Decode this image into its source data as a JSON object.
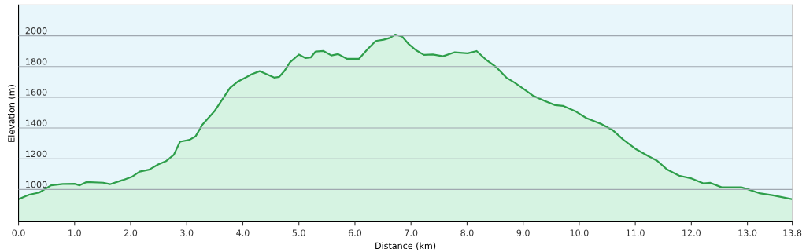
{
  "chart_data": {
    "type": "area",
    "xlabel": "Distance (km)",
    "ylabel": "Elevation (m)",
    "xlim": [
      0,
      13.8
    ],
    "ylim": [
      790,
      2200
    ],
    "xticks": [
      {
        "value": 0,
        "label": "0.0"
      },
      {
        "value": 1,
        "label": "1.0"
      },
      {
        "value": 2,
        "label": "2.0"
      },
      {
        "value": 3,
        "label": "3.0"
      },
      {
        "value": 4,
        "label": "4.0"
      },
      {
        "value": 5,
        "label": "5.0"
      },
      {
        "value": 6,
        "label": "6.0"
      },
      {
        "value": 7,
        "label": "7.0"
      },
      {
        "value": 8,
        "label": "8.0"
      },
      {
        "value": 9,
        "label": "9.0"
      },
      {
        "value": 10,
        "label": "10.0"
      },
      {
        "value": 11,
        "label": "11.0"
      },
      {
        "value": 12,
        "label": "12.0"
      },
      {
        "value": 13,
        "label": "13.0"
      },
      {
        "value": 13.8,
        "label": "13.8"
      }
    ],
    "yticks": [
      1000,
      1200,
      1400,
      1600,
      1800,
      2000
    ],
    "grid": "y",
    "series": [
      {
        "color": "#2e9e4a",
        "x": [
          0,
          0.19,
          0.37,
          0.58,
          0.79,
          1.0,
          1.09,
          1.21,
          1.51,
          1.63,
          1.86,
          2.02,
          2.16,
          2.33,
          2.49,
          2.63,
          2.77,
          2.88,
          3.05,
          3.16,
          3.28,
          3.49,
          3.63,
          3.77,
          3.91,
          4.05,
          4.16,
          4.3,
          4.56,
          4.65,
          4.74,
          4.84,
          5.0,
          5.12,
          5.21,
          5.3,
          5.44,
          5.58,
          5.7,
          5.86,
          6.07,
          6.23,
          6.37,
          6.51,
          6.62,
          6.72,
          6.84,
          6.95,
          7.09,
          7.23,
          7.39,
          7.57,
          7.78,
          8.01,
          8.17,
          8.33,
          8.52,
          8.7,
          8.84,
          9.0,
          9.18,
          9.39,
          9.57,
          9.71,
          9.94,
          10.13,
          10.4,
          10.59,
          10.79,
          11.0,
          11.23,
          11.39,
          11.57,
          11.78,
          11.99,
          12.22,
          12.34,
          12.54,
          12.89,
          13.02,
          13.21,
          13.44,
          13.8
        ],
        "values": [
          937,
          966,
          980,
          1027,
          1036,
          1037,
          1027,
          1048,
          1044,
          1034,
          1061,
          1082,
          1116,
          1129,
          1163,
          1184,
          1226,
          1311,
          1323,
          1347,
          1422,
          1507,
          1583,
          1660,
          1702,
          1728,
          1750,
          1770,
          1728,
          1733,
          1770,
          1827,
          1878,
          1855,
          1859,
          1898,
          1901,
          1872,
          1881,
          1850,
          1850,
          1915,
          1966,
          1974,
          1986,
          2008,
          1995,
          1949,
          1906,
          1876,
          1878,
          1867,
          1893,
          1886,
          1901,
          1847,
          1796,
          1728,
          1697,
          1656,
          1609,
          1575,
          1549,
          1544,
          1507,
          1464,
          1425,
          1388,
          1323,
          1265,
          1218,
          1187,
          1129,
          1090,
          1073,
          1039,
          1043,
          1014,
          1014,
          1000,
          976,
          963,
          937
        ]
      }
    ]
  }
}
